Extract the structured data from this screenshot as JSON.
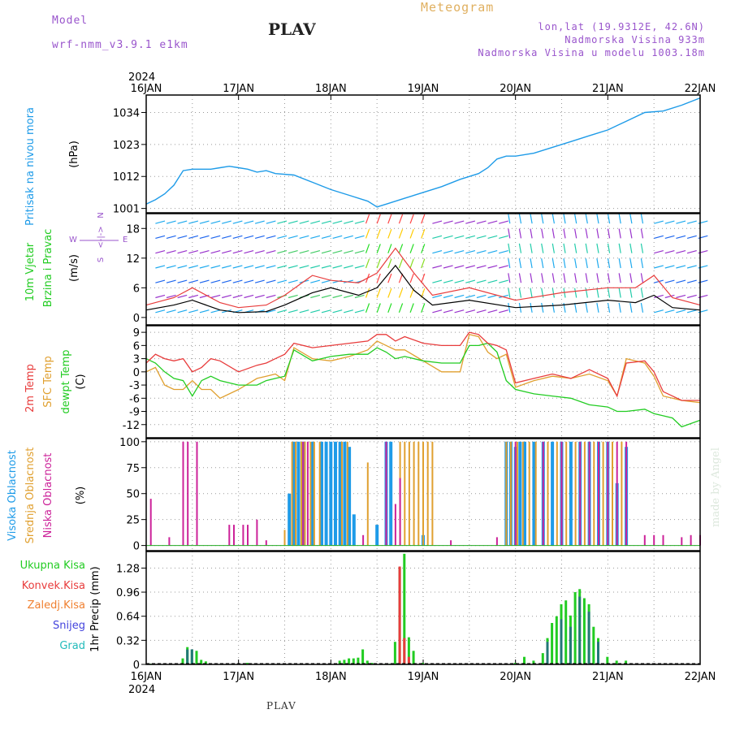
{
  "header": {
    "model_label": "Model",
    "model_name": "wrf-nmm_v3.9.1 e1km",
    "title": "PLAV",
    "meteogram": "Meteogram",
    "lonlat": "lon,lat (19.9312E, 42.6N)",
    "altitude": "Nadmorska Visina 933m",
    "model_altitude": "Nadmorska Visina u modelu 1003.18m",
    "footer_title": "PLAV",
    "watermark": "made by Angel"
  },
  "colors": {
    "pressure": "#1e9be8",
    "temp2m": "#e83c3c",
    "sfc": "#e0a030",
    "dew": "#22cc22",
    "high_cloud": "#1e9be8",
    "mid_cloud": "#e0a030",
    "low_cloud": "#cc2299",
    "total_precip": "#22cc22",
    "conv_precip": "#e83c3c",
    "strat_precip": "#f08030",
    "snow": "#4444dd",
    "hail": "#22bbbb",
    "header_purple": "#9955cc",
    "header_orange": "#e0b060"
  },
  "chart_data": [
    {
      "type": "line",
      "name": "pressure",
      "year_label": "2024",
      "x_tick_labels": [
        "16JAN",
        "17JAN",
        "18JAN",
        "19JAN",
        "20JAN",
        "21JAN",
        "22JAN"
      ],
      "ylabel": "Pritisak na nivou mora",
      "unit": "(hPa)",
      "yticks": [
        1001,
        1012,
        1023,
        1034
      ],
      "ylim": [
        999.5,
        1040
      ],
      "series": [
        {
          "x": [
            0,
            0.1,
            0.2,
            0.3,
            0.4,
            0.5,
            0.7,
            0.8,
            0.9,
            1.0,
            1.1,
            1.2,
            1.3,
            1.4,
            1.6,
            1.8,
            2.0,
            2.2,
            2.4,
            2.5,
            2.6,
            2.8,
            3.0,
            3.2,
            3.4,
            3.6,
            3.7,
            3.8,
            3.9,
            4.0,
            4.2,
            4.4,
            4.6,
            4.8,
            5.0,
            5.2,
            5.4,
            5.6,
            5.8,
            6.0
          ],
          "values": [
            1002.5,
            1004,
            1006,
            1009,
            1014,
            1014.5,
            1014.5,
            1015,
            1015.5,
            1015,
            1014.5,
            1013.5,
            1014,
            1013,
            1012.5,
            1010,
            1007.5,
            1005.5,
            1003.5,
            1001.5,
            1002.5,
            1004.5,
            1006.5,
            1008.5,
            1011,
            1013,
            1015,
            1018,
            1019,
            1019,
            1020,
            1022,
            1024,
            1026,
            1028,
            1031,
            1034,
            1034.5,
            1036.5,
            1039
          ]
        }
      ]
    },
    {
      "type": "barbs",
      "name": "wind",
      "ylabel_1": "10m Vjetar",
      "ylabel_2": "Brzina i Pravac",
      "unit": "(m/s)",
      "legend": {
        "n": "N",
        "s": "S",
        "e": "E",
        "w": "W",
        "arrows": "<-|->"
      },
      "yticks": [
        0,
        6,
        12,
        18
      ],
      "ylim": [
        -1.5,
        21
      ],
      "series": [
        {
          "name": "speed",
          "x": [
            0,
            0.3,
            0.5,
            0.8,
            1.0,
            1.3,
            1.5,
            1.8,
            2.0,
            2.3,
            2.5,
            2.7,
            2.9,
            3.1,
            3.5,
            4.0,
            4.5,
            5.0,
            5.3,
            5.5,
            5.7,
            6.0
          ],
          "values": [
            1.5,
            2.5,
            3.5,
            1.5,
            1.0,
            1.2,
            2.5,
            5.0,
            6.0,
            4.5,
            6.0,
            10.5,
            5.5,
            2.5,
            3.5,
            2.0,
            2.5,
            3.5,
            3.0,
            4.5,
            2.0,
            1.5
          ]
        },
        {
          "name": "gust",
          "x": [
            0,
            0.3,
            0.5,
            0.8,
            1.0,
            1.3,
            1.5,
            1.8,
            2.0,
            2.3,
            2.5,
            2.7,
            2.9,
            3.1,
            3.5,
            4.0,
            4.5,
            5.0,
            5.3,
            5.5,
            5.7,
            6.0
          ],
          "values": [
            2.5,
            4.0,
            6.0,
            3.0,
            2.0,
            2.5,
            4.5,
            8.5,
            7.5,
            7.0,
            9.0,
            14.0,
            9.0,
            4.5,
            6.0,
            3.5,
            5.0,
            6.0,
            6.0,
            8.5,
            4.0,
            2.5
          ]
        }
      ]
    },
    {
      "type": "line",
      "name": "temperature",
      "ylabel_temp": "2m Temp",
      "ylabel_sfc": "SFC Temp",
      "ylabel_dew": "dewpt Temp",
      "unit": "(C)",
      "yticks": [
        9,
        6,
        3,
        0,
        -3,
        -6,
        -9,
        -12
      ],
      "ylim": [
        -15,
        10.5
      ],
      "x": [
        0,
        0.1,
        0.2,
        0.3,
        0.4,
        0.5,
        0.6,
        0.7,
        0.8,
        1.0,
        1.2,
        1.3,
        1.4,
        1.5,
        1.6,
        1.8,
        2.0,
        2.2,
        2.4,
        2.5,
        2.6,
        2.7,
        2.8,
        3.0,
        3.2,
        3.4,
        3.5,
        3.6,
        3.7,
        3.8,
        3.9,
        4.0,
        4.2,
        4.4,
        4.6,
        4.8,
        5.0,
        5.1,
        5.2,
        5.4,
        5.5,
        5.6,
        5.7,
        5.8,
        6.0
      ],
      "series": [
        {
          "name": "2m Temp",
          "values": [
            2,
            4,
            3,
            2.5,
            3,
            0,
            1,
            3,
            2.5,
            0,
            1.5,
            2,
            3,
            4,
            6.5,
            5.5,
            6,
            6.5,
            7,
            8.5,
            8.5,
            7,
            8,
            6.5,
            6,
            6,
            9,
            8.5,
            6.5,
            6,
            5,
            -2.5,
            -1.5,
            -0.5,
            -1.5,
            0.5,
            -1.5,
            -5.5,
            2,
            2.5,
            0,
            -4.5,
            -5.5,
            -6.5,
            -6.5
          ]
        },
        {
          "name": "SFC Temp",
          "values": [
            0,
            1,
            -3,
            -4,
            -4,
            -2,
            -4,
            -4,
            -6,
            -4,
            -1.5,
            -1,
            -0.5,
            -2,
            5.5,
            3,
            2.5,
            3.5,
            5,
            7,
            6,
            5,
            5,
            2.5,
            0,
            0,
            8.5,
            8,
            4.5,
            3,
            4,
            -3.5,
            -2,
            -1,
            -1.5,
            -0.5,
            -2,
            -5.5,
            3,
            2,
            -1,
            -5.5,
            -6,
            -6.5,
            -7
          ]
        },
        {
          "name": "dewpt Temp",
          "values": [
            3,
            2,
            0,
            -1.5,
            -2,
            -5.5,
            -2,
            -1,
            -2,
            -3,
            -3,
            -2,
            -1.5,
            -1,
            5,
            2.5,
            3.5,
            4,
            4,
            5.5,
            4.5,
            3,
            3.5,
            2.5,
            2,
            2,
            6,
            6,
            6.5,
            4.5,
            -2,
            -4,
            -5,
            -5.5,
            -6,
            -7.5,
            -8,
            -9,
            -9,
            -8.5,
            -9.5,
            -10,
            -10.5,
            -12.5,
            -11
          ]
        }
      ]
    },
    {
      "type": "bar",
      "name": "cloud",
      "ylabel_high": "Visoka Oblacnost",
      "ylabel_mid": "Srednja Oblacnost",
      "ylabel_low": "Niska Oblacnost",
      "unit": "(%)",
      "yticks": [
        0,
        25,
        50,
        75,
        100
      ],
      "ylim": [
        -5,
        103
      ],
      "series": [
        {
          "name": "Visoka Oblacnost",
          "x": [
            1.55,
            1.6,
            1.65,
            1.7,
            1.8,
            1.9,
            1.95,
            2.0,
            2.05,
            2.1,
            2.15,
            2.2,
            2.25,
            2.5,
            2.6,
            2.65,
            3.0,
            3.9,
            3.95,
            4.0,
            4.05,
            4.1,
            4.2,
            4.3,
            4.4,
            4.5,
            4.6,
            4.7,
            4.8,
            4.9,
            5.0,
            5.1,
            5.2
          ],
          "values": [
            50,
            100,
            100,
            100,
            100,
            100,
            100,
            100,
            100,
            100,
            100,
            95,
            30,
            20,
            100,
            100,
            10,
            100,
            100,
            95,
            100,
            100,
            100,
            100,
            100,
            100,
            100,
            100,
            100,
            100,
            100,
            60,
            95
          ]
        },
        {
          "name": "Srednja Oblacnost",
          "x": [
            1.5,
            1.58,
            1.62,
            1.68,
            1.72,
            1.78,
            1.82,
            1.88,
            2.12,
            2.18,
            2.4,
            2.75,
            2.8,
            2.85,
            2.9,
            2.95,
            3.0,
            3.05,
            3.1,
            3.9,
            3.95,
            4.02,
            4.08,
            4.15,
            4.22,
            4.35,
            4.45,
            4.55,
            4.65,
            4.75,
            4.85,
            4.95,
            5.05,
            5.15
          ],
          "values": [
            15,
            100,
            100,
            100,
            100,
            100,
            100,
            100,
            100,
            100,
            80,
            100,
            100,
            100,
            100,
            100,
            100,
            100,
            100,
            100,
            100,
            100,
            100,
            100,
            100,
            100,
            100,
            100,
            100,
            100,
            100,
            100,
            100,
            100
          ]
        },
        {
          "name": "Niska Oblacnost",
          "x": [
            0.05,
            0.25,
            0.4,
            0.45,
            0.55,
            0.9,
            0.95,
            1.05,
            1.1,
            1.2,
            1.3,
            1.7,
            1.75,
            2.35,
            2.6,
            2.7,
            2.75,
            3.3,
            3.8,
            4.0,
            4.3,
            4.5,
            4.7,
            4.8,
            4.9,
            5.0,
            5.1,
            5.2,
            5.4,
            5.5,
            5.6,
            5.8,
            5.9,
            6.0
          ],
          "values": [
            45,
            8,
            100,
            100,
            100,
            20,
            20,
            20,
            20,
            25,
            5,
            100,
            100,
            10,
            100,
            40,
            65,
            5,
            8,
            100,
            100,
            100,
            100,
            100,
            100,
            100,
            100,
            100,
            10,
            10,
            10,
            8,
            10,
            10
          ]
        }
      ]
    },
    {
      "type": "bar",
      "name": "precipitation",
      "ylabel": "1hr Precip",
      "unit": "(mm)",
      "legend_total": "Ukupna Kisa",
      "legend_conv": "Konvek.Kisa",
      "legend_strat": "Zaledj.Kisa",
      "legend_snow": "Snijeg",
      "legend_hail": "Grad",
      "yticks": [
        0,
        0.32,
        0.64,
        0.96,
        1.28
      ],
      "ylim": [
        0,
        1.5
      ],
      "bottom_year": "2024",
      "x_tick_labels": [
        "16JAN",
        "17JAN",
        "18JAN",
        "19JAN",
        "20JAN",
        "21JAN",
        "22JAN"
      ],
      "series": [
        {
          "name": "Ukupna Kisa",
          "x": [
            0.05,
            0.4,
            0.45,
            0.5,
            0.55,
            0.6,
            0.65,
            1.0,
            1.1,
            2.0,
            2.1,
            2.15,
            2.2,
            2.25,
            2.3,
            2.35,
            2.4,
            2.45,
            2.5,
            2.6,
            2.65,
            2.7,
            2.75,
            2.8,
            2.85,
            2.9,
            3.0,
            4.0,
            4.1,
            4.2,
            4.3,
            4.35,
            4.4,
            4.45,
            4.5,
            4.55,
            4.6,
            4.65,
            4.7,
            4.75,
            4.8,
            4.85,
            4.9,
            5.0,
            5.1,
            5.2
          ],
          "values": [
            0.01,
            0.08,
            0.23,
            0.2,
            0.18,
            0.06,
            0.04,
            0.01,
            0.02,
            0.01,
            0.05,
            0.06,
            0.08,
            0.08,
            0.09,
            0.2,
            0.05,
            0.02,
            0.0,
            0.01,
            0.01,
            0.3,
            1.28,
            1.47,
            0.36,
            0.18,
            0.02,
            0.02,
            0.1,
            0.05,
            0.15,
            0.35,
            0.55,
            0.64,
            0.8,
            0.85,
            0.65,
            0.96,
            1.0,
            0.88,
            0.8,
            0.5,
            0.35,
            0.1,
            0.05,
            0.05
          ]
        },
        {
          "name": "Konvek.Kisa",
          "x": [
            2.75,
            2.8,
            2.85
          ],
          "values": [
            1.3,
            0.35,
            0.1
          ]
        },
        {
          "name": "Snijeg",
          "x": [
            0.45,
            0.5,
            4.35,
            4.5,
            4.6,
            4.7,
            4.8,
            4.9
          ],
          "values": [
            0.2,
            0.2,
            0.3,
            0.6,
            0.5,
            0.9,
            0.7,
            0.3
          ]
        }
      ]
    }
  ]
}
